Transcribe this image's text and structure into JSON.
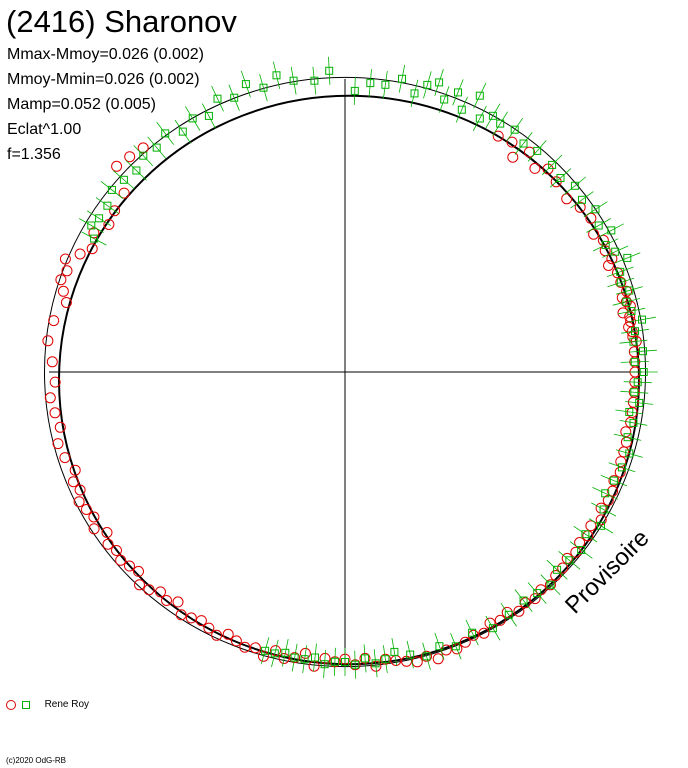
{
  "header": {
    "title": "(2416) Sharonov",
    "stats": [
      "Mmax-Mmoy=0.026 (0.002)",
      "Mmoy-Mmin=0.026 (0.002)",
      "Mamp=0.052 (0.005)",
      "Eclat^1.00",
      "f=1.356"
    ]
  },
  "legend": {
    "observer": "Rene Roy"
  },
  "footer": {
    "copyright": "(c)2020 OdG-RB"
  },
  "watermark": "Provisoire",
  "chart_data": {
    "type": "scatter",
    "coordinate_system": "polar",
    "title": "(2416) Sharonov",
    "grid": false,
    "colors": {
      "red_series": "#e00000",
      "green_series": "#00b000",
      "fit": "#000000"
    },
    "series": [
      {
        "name": "",
        "marker": "circle",
        "color": "#e00000",
        "points": [
          [
            33,
            0.97
          ],
          [
            36,
            0.98
          ],
          [
            38,
            0.94
          ],
          [
            40,
            0.99
          ],
          [
            43,
            0.96
          ],
          [
            45,
            0.99
          ],
          [
            48,
            0.98
          ],
          [
            52,
            0.97
          ],
          [
            55,
            0.99
          ],
          [
            58,
            1.0
          ],
          [
            61,
            0.98
          ],
          [
            63,
            1.0
          ],
          [
            65,
            0.99
          ],
          [
            67,
            1.0
          ],
          [
            68,
            0.98
          ],
          [
            70,
            1.0
          ],
          [
            72,
            1.0
          ],
          [
            74,
            1.01
          ],
          [
            75,
            0.99
          ],
          [
            76,
            1.0
          ],
          [
            77,
            1.01
          ],
          [
            78,
            0.98
          ],
          [
            79,
            1.0
          ],
          [
            80,
            1.0
          ],
          [
            81,
            0.99
          ],
          [
            82,
            1.0
          ],
          [
            83,
            1.0
          ],
          [
            84,
            1.01
          ],
          [
            86,
            1.0
          ],
          [
            88,
            1.0
          ],
          [
            90,
            1.0
          ],
          [
            92,
            1.0
          ],
          [
            94,
            1.0
          ],
          [
            96,
            1.0
          ],
          [
            98,
            1.0
          ],
          [
            100,
            1.0
          ],
          [
            102,
            0.99
          ],
          [
            104,
            1.0
          ],
          [
            106,
            1.0
          ],
          [
            108,
            1.0
          ],
          [
            110,
            1.01
          ],
          [
            112,
            1.0
          ],
          [
            114,
            1.01
          ],
          [
            116,
            1.01
          ],
          [
            118,
            1.0
          ],
          [
            120,
            1.02
          ],
          [
            122,
            1.0
          ],
          [
            124,
            1.01
          ],
          [
            126,
            1.0
          ],
          [
            128,
            1.01
          ],
          [
            130,
            1.0
          ],
          [
            132,
            1.01
          ],
          [
            134,
            1.01
          ],
          [
            136,
            1.02
          ],
          [
            138,
            1.01
          ],
          [
            140,
            1.02
          ],
          [
            142,
            1.01
          ],
          [
            144,
            1.02
          ],
          [
            146,
            1.0
          ],
          [
            148,
            1.01
          ],
          [
            150,
            1.0
          ],
          [
            152,
            1.02
          ],
          [
            154,
            1.01
          ],
          [
            156,
            1.02
          ],
          [
            158,
            1.03
          ],
          [
            160,
            1.02
          ],
          [
            162,
            1.04
          ],
          [
            164,
            1.02
          ],
          [
            166,
            1.03
          ],
          [
            168,
            1.02
          ],
          [
            170,
            1.01
          ],
          [
            172,
            1.0
          ],
          [
            174,
            1.02
          ],
          [
            176,
            0.99
          ],
          [
            178,
            1.01
          ],
          [
            180,
            0.99
          ],
          [
            182,
            1.0
          ],
          [
            184,
            0.99
          ],
          [
            186,
            1.02
          ],
          [
            188,
            0.98
          ],
          [
            190,
            1.0
          ],
          [
            192,
            1.01
          ],
          [
            194,
            0.99
          ],
          [
            196,
            1.02
          ],
          [
            198,
            1.0
          ],
          [
            200,
            1.01
          ],
          [
            202,
            1.0
          ],
          [
            204,
            0.99
          ],
          [
            206,
            1.01
          ],
          [
            208,
            1.0
          ],
          [
            210,
            0.99
          ],
          [
            212,
            1.0
          ],
          [
            214,
            1.01
          ],
          [
            216,
            0.98
          ],
          [
            218,
            1.0
          ],
          [
            220,
            0.99
          ],
          [
            222,
            1.01
          ],
          [
            224,
            1.02
          ],
          [
            226,
            0.99
          ],
          [
            228,
            1.0
          ],
          [
            230,
            1.01
          ],
          [
            232,
            1.0
          ],
          [
            234,
            1.01
          ],
          [
            236,
            0.99
          ],
          [
            238,
            1.02
          ],
          [
            240,
            1.0
          ],
          [
            242,
            1.01
          ],
          [
            244,
            1.02
          ],
          [
            246,
            1.0
          ],
          [
            248,
            1.01
          ],
          [
            250,
            0.99
          ],
          [
            253,
            1.01
          ],
          [
            256,
            1.02
          ],
          [
            259,
            1.0
          ],
          [
            262,
            1.01
          ],
          [
            265,
            1.02
          ],
          [
            268,
            1.0
          ],
          [
            272,
            1.01
          ],
          [
            276,
            1.03
          ],
          [
            280,
            1.02
          ],
          [
            284,
            0.99
          ],
          [
            286,
            1.01
          ],
          [
            288,
            1.03
          ],
          [
            290,
            1.02
          ],
          [
            292,
            1.04
          ],
          [
            294,
            1.0
          ],
          [
            296,
            0.97
          ],
          [
            299,
            0.99
          ],
          [
            302,
            0.96
          ],
          [
            305,
            0.97
          ],
          [
            309,
            0.98
          ],
          [
            312,
            1.06
          ],
          [
            315,
            1.05
          ],
          [
            318,
            1.04
          ]
        ]
      },
      {
        "name": "",
        "marker": "square",
        "color": "#00b000",
        "points": [
          [
            2,
            0.97
          ],
          [
            5,
            1.0
          ],
          [
            8,
            1.0
          ],
          [
            11,
            1.03
          ],
          [
            14,
            0.99
          ],
          [
            16,
            1.03
          ],
          [
            18,
            1.05
          ],
          [
            20,
            1.0
          ],
          [
            22,
            1.04
          ],
          [
            24,
            0.99
          ],
          [
            26,
            1.06
          ],
          [
            28,
            0.99
          ],
          [
            30,
            1.02
          ],
          [
            32,
            1.01
          ],
          [
            35,
            1.02
          ],
          [
            38,
            1.0
          ],
          [
            41,
            1.01
          ],
          [
            45,
            1.01
          ],
          [
            48,
            1.0
          ],
          [
            51,
            1.02
          ],
          [
            54,
            1.01
          ],
          [
            57,
            1.03
          ],
          [
            60,
            1.01
          ],
          [
            62,
            1.04
          ],
          [
            64,
            1.0
          ],
          [
            66,
            1.02
          ],
          [
            68,
            1.05
          ],
          [
            70,
            1.01
          ],
          [
            72,
            1.0
          ],
          [
            74,
            1.02
          ],
          [
            76,
            1.0
          ],
          [
            78,
            1.01
          ],
          [
            80,
            1.04
          ],
          [
            82,
            1.01
          ],
          [
            84,
            1.0
          ],
          [
            86,
            1.03
          ],
          [
            88,
            1.0
          ],
          [
            90,
            1.03
          ],
          [
            92,
            1.01
          ],
          [
            94,
            1.0
          ],
          [
            96,
            1.02
          ],
          [
            98,
            0.99
          ],
          [
            100,
            1.01
          ],
          [
            103,
            1.0
          ],
          [
            106,
            1.02
          ],
          [
            109,
            1.01
          ],
          [
            112,
            1.0
          ],
          [
            115,
            0.99
          ],
          [
            118,
            1.01
          ],
          [
            121,
            1.03
          ],
          [
            124,
            1.0
          ],
          [
            127,
            1.02
          ],
          [
            130,
            1.01
          ],
          [
            133,
            1.0
          ],
          [
            136,
            1.02
          ],
          [
            139,
            1.01
          ],
          [
            142,
            1.0
          ],
          [
            146,
            1.01
          ],
          [
            150,
            1.02
          ],
          [
            154,
            1.0
          ],
          [
            158,
            1.02
          ],
          [
            161,
            1.0
          ],
          [
            164,
            1.02
          ],
          [
            167,
            1.0
          ],
          [
            170,
            0.98
          ],
          [
            172,
            1.0
          ],
          [
            174,
            1.01
          ],
          [
            176,
            0.99
          ],
          [
            178,
            1.01
          ],
          [
            180,
            1.0
          ],
          [
            182,
            1.0
          ],
          [
            184,
            1.01
          ],
          [
            186,
            0.99
          ],
          [
            188,
            1.0
          ],
          [
            190,
            1.0
          ],
          [
            192,
            0.99
          ],
          [
            194,
            1.0
          ],
          [
            196,
            1.0
          ],
          [
            298,
            0.98
          ],
          [
            300,
            1.01
          ],
          [
            302,
            1.0
          ],
          [
            305,
            1.0
          ],
          [
            308,
            1.02
          ],
          [
            311,
            1.01
          ],
          [
            314,
            1.0
          ],
          [
            317,
            1.02
          ],
          [
            320,
            1.01
          ],
          [
            323,
            1.03
          ],
          [
            326,
            1.0
          ],
          [
            329,
            1.02
          ],
          [
            332,
            1.0
          ],
          [
            335,
            1.04
          ],
          [
            338,
            1.02
          ],
          [
            341,
            1.05
          ],
          [
            344,
            1.02
          ],
          [
            347,
            1.05
          ],
          [
            350,
            1.02
          ],
          [
            354,
            1.01
          ],
          [
            357,
            1.04
          ]
        ]
      }
    ],
    "fit_curves": [
      {
        "name": "",
        "shape": "ellipse",
        "rx": 1.0,
        "ry": 1.0
      },
      {
        "name": "",
        "shape": "ellipse",
        "rx": 1.026,
        "ry": 1.026
      }
    ]
  }
}
